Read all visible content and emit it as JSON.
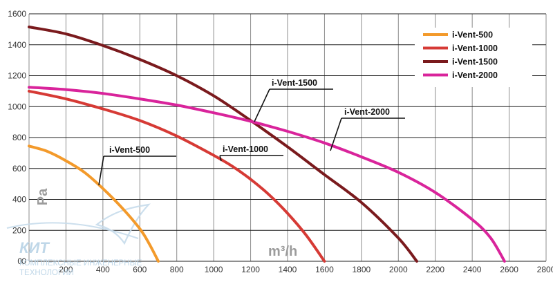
{
  "chart_data": {
    "type": "line",
    "xlabel": "m³/h",
    "ylabel": "Pa",
    "xlim": [
      0,
      2800
    ],
    "ylim": [
      0,
      1600
    ],
    "xticks": [
      0,
      200,
      400,
      600,
      800,
      1000,
      1200,
      1400,
      1600,
      1800,
      2000,
      2200,
      2400,
      2600,
      2800
    ],
    "yticks": [
      0,
      200,
      400,
      600,
      800,
      1000,
      1200,
      1400,
      1600
    ],
    "grid": true,
    "legend_position": "top-right",
    "series": [
      {
        "name": "i-Vent-500",
        "color": "#f39a2b",
        "x": [
          0,
          100,
          200,
          300,
          400,
          500,
          600,
          650,
          700
        ],
        "y": [
          745,
          710,
          650,
          575,
          470,
          350,
          210,
          115,
          0
        ]
      },
      {
        "name": "i-Vent-1000",
        "color": "#d63a35",
        "x": [
          0,
          200,
          400,
          600,
          800,
          1000,
          1100,
          1200,
          1300,
          1400,
          1500,
          1600
        ],
        "y": [
          1100,
          1050,
          985,
          910,
          810,
          685,
          615,
          530,
          430,
          310,
          170,
          0
        ]
      },
      {
        "name": "i-Vent-1500",
        "color": "#7a1a1d",
        "x": [
          0,
          200,
          400,
          600,
          800,
          1000,
          1200,
          1400,
          1600,
          1800,
          2000,
          2100
        ],
        "y": [
          1515,
          1470,
          1395,
          1305,
          1200,
          1070,
          910,
          740,
          560,
          380,
          150,
          0
        ]
      },
      {
        "name": "i-Vent-2000",
        "color": "#d9249b",
        "x": [
          0,
          200,
          400,
          600,
          800,
          1000,
          1200,
          1400,
          1600,
          1800,
          2000,
          2200,
          2400,
          2500,
          2575
        ],
        "y": [
          1125,
          1110,
          1085,
          1050,
          1010,
          960,
          905,
          840,
          765,
          675,
          575,
          445,
          270,
          150,
          0
        ]
      }
    ],
    "annotations": [
      {
        "text": "i-Vent-500",
        "series": "i-Vent-500"
      },
      {
        "text": "i-Vent-1000",
        "series": "i-Vent-1000"
      },
      {
        "text": "i-Vent-1500",
        "series": "i-Vent-1500"
      },
      {
        "text": "i-Vent-2000",
        "series": "i-Vent-2000"
      }
    ]
  },
  "watermark": {
    "brand": "КИТ",
    "line1": "КОМПЛЕКСНЫЕ ИНЖЕНЕРНЫЕ",
    "line2": "ТЕХНОЛОГИИ"
  }
}
